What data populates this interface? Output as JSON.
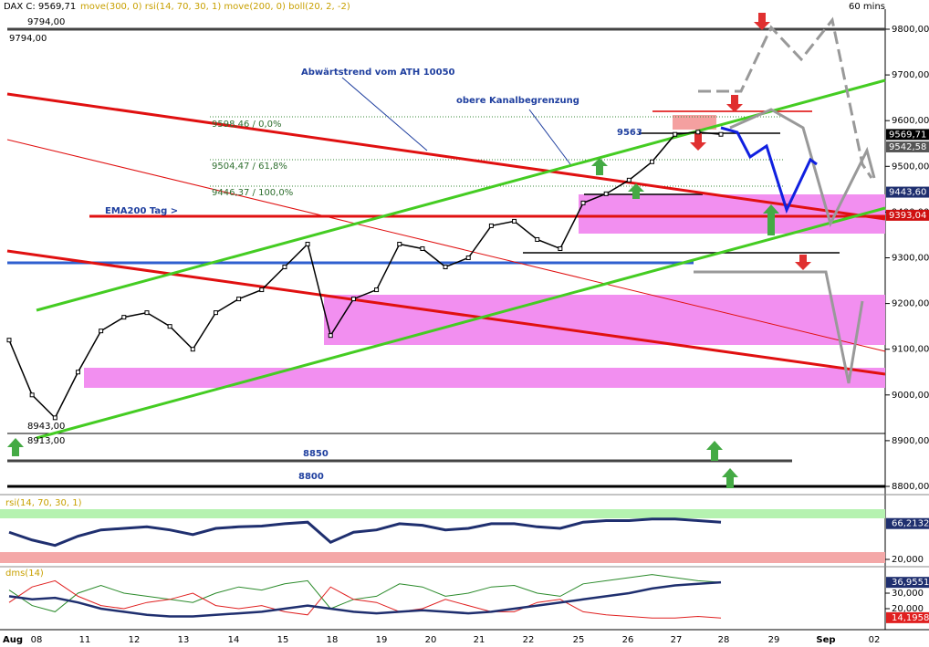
{
  "header": {
    "symbol": "DAX C: 9569,71",
    "indicators": "move(300, 0) rsi(14, 70, 30, 1) move(200, 0) boll(20, 2, -2)",
    "timeframe": "60 mins"
  },
  "annotations": {
    "level_top": "9794,00",
    "level_top_2": "9794,00",
    "trend": "Abwärtstrend vom ATH 10050",
    "channel": "obere Kanalbegrenzung",
    "fib_0": "9598,46 / 0,0%",
    "fib_618": "9504,47 / 61,8%",
    "fib_100": "9446,37 / 100,0%",
    "level_9563": "9563",
    "ema": "EMA200 Tag >",
    "low_1": "8943,00",
    "low_2": "8913,00",
    "level_8850": "8850",
    "level_8800": "8800"
  },
  "price": {
    "ylim": [
      8770,
      9830
    ],
    "ticks": [
      {
        "value": 9800,
        "label": "9800,00"
      },
      {
        "value": 9700,
        "label": "9700,00"
      },
      {
        "value": 9600,
        "label": "9600,00"
      },
      {
        "value": 9500,
        "label": "9500,00"
      },
      {
        "value": 9400,
        "label": "9400,00"
      },
      {
        "value": 9300,
        "label": "9300,00"
      },
      {
        "value": 9200,
        "label": "9200,00"
      },
      {
        "value": 9100,
        "label": "9100,00"
      },
      {
        "value": 9000,
        "label": "9000,00"
      },
      {
        "value": 8900,
        "label": "8900,00"
      },
      {
        "value": 8800,
        "label": "8800,00"
      }
    ],
    "close": [
      9120,
      9000,
      8950,
      9050,
      9140,
      9170,
      9180,
      9150,
      9100,
      9180,
      9210,
      9230,
      9280,
      9330,
      9130,
      9210,
      9230,
      9330,
      9320,
      9280,
      9300,
      9370,
      9380,
      9340,
      9320,
      9420,
      9440,
      9470,
      9510,
      9570,
      9575,
      9570
    ],
    "markers": [
      {
        "value": 9569.71,
        "label": "9569,71",
        "color": "#000000"
      },
      {
        "value": 9542.58,
        "label": "9542,58",
        "color": "#555555"
      },
      {
        "value": 9443.6,
        "label": "9443,60",
        "color": "#1f2f6f"
      },
      {
        "value": 9393.04,
        "label": "9393,04",
        "color": "#d01010"
      }
    ]
  },
  "rsi": {
    "title": "rsi(14, 70, 30, 1)",
    "values": [
      55,
      45,
      38,
      50,
      58,
      60,
      62,
      58,
      52,
      60,
      62,
      63,
      66,
      68,
      42,
      55,
      58,
      66,
      64,
      58,
      60,
      66,
      66,
      62,
      60,
      68,
      70,
      70,
      72,
      72,
      70,
      68
    ],
    "markers": [
      {
        "value": 66.2132,
        "label": "66,2132"
      },
      {
        "value": 20,
        "label": "20,000"
      }
    ]
  },
  "dms": {
    "title": "dms(14)",
    "plus": [
      32,
      22,
      18,
      30,
      35,
      30,
      28,
      26,
      24,
      30,
      34,
      32,
      36,
      38,
      20,
      26,
      28,
      36,
      34,
      28,
      30,
      34,
      35,
      30,
      28,
      36,
      38,
      40,
      42,
      40,
      38,
      37
    ],
    "minus": [
      24,
      34,
      38,
      28,
      22,
      20,
      24,
      26,
      30,
      22,
      20,
      22,
      18,
      16,
      34,
      26,
      24,
      18,
      20,
      26,
      22,
      18,
      18,
      24,
      26,
      18,
      16,
      15,
      14,
      14,
      15,
      14
    ],
    "adx": [
      28,
      26,
      27,
      24,
      20,
      18,
      16,
      15,
      15,
      16,
      17,
      18,
      20,
      22,
      20,
      18,
      17,
      18,
      19,
      18,
      17,
      18,
      20,
      22,
      24,
      26,
      28,
      30,
      33,
      35,
      36,
      37
    ],
    "markers": [
      {
        "value": 36.9551,
        "label": "36,9551"
      },
      {
        "value": 30,
        "label": "30,000"
      },
      {
        "value": 20,
        "label": "20,000"
      },
      {
        "value": 14.1958,
        "label": "14,1958"
      }
    ]
  },
  "dates": [
    "Aug",
    "08",
    "11",
    "12",
    "13",
    "14",
    "15",
    "18",
    "19",
    "20",
    "21",
    "22",
    "25",
    "26",
    "27",
    "28",
    "29",
    "Sep",
    "02"
  ]
}
